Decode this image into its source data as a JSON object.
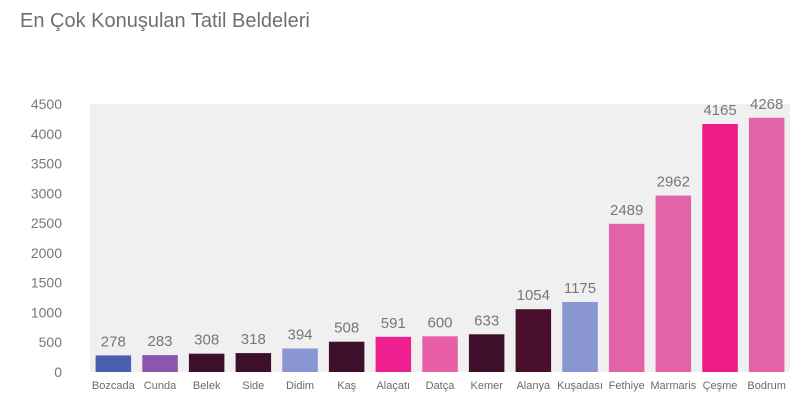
{
  "chart_data": {
    "type": "bar",
    "title": "En Çok Konuşulan Tatil Beldeleri",
    "xlabel": "",
    "ylabel": "",
    "ylim": [
      0,
      4500
    ],
    "y_ticks": [
      0,
      500,
      1000,
      1500,
      2000,
      2500,
      3000,
      3500,
      4000,
      4500
    ],
    "grid": false,
    "categories": [
      "Bozcada",
      "Cunda",
      "Belek",
      "Side",
      "Didim",
      "Kaş",
      "Alaçatı",
      "Datça",
      "Kemer",
      "Alanya",
      "Kuşadası",
      "Fethiye",
      "Marmaris",
      "Çeşme",
      "Bodrum"
    ],
    "values": [
      278,
      283,
      308,
      318,
      394,
      508,
      591,
      600,
      633,
      1054,
      1175,
      2489,
      2962,
      4165,
      4268
    ],
    "bar_colors": [
      "#4a5fb0",
      "#8a56b0",
      "#3d0f2a",
      "#3d0f2a",
      "#8a96d2",
      "#3d0f2a",
      "#ee1f8f",
      "#e85fa8",
      "#3d0f2a",
      "#4a0f2d",
      "#8a96d2",
      "#e462a8",
      "#e462a8",
      "#ee1a86",
      "#e462a8"
    ]
  }
}
